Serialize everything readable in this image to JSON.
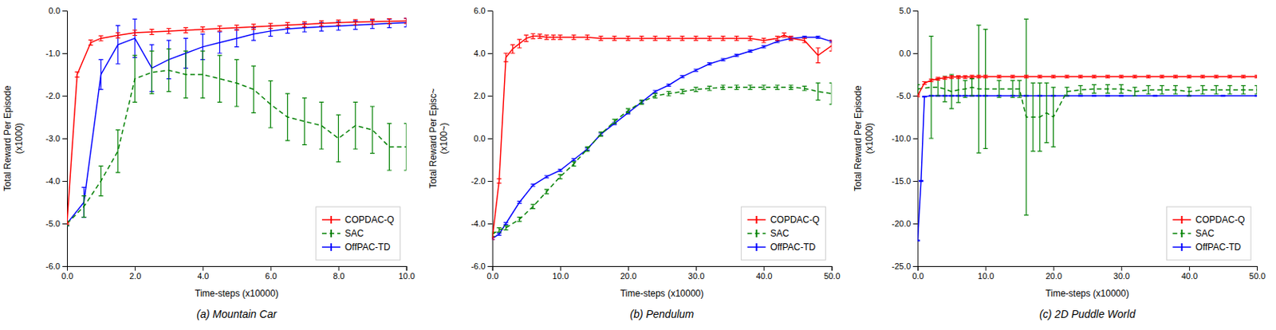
{
  "chart_data": [
    {
      "type": "line",
      "title": "(a)  Mountain Car",
      "xlabel": "Time-steps (x10000)",
      "ylabel": "Total Reward Per Episode\n(x1000)",
      "xlim": [
        0,
        10.0
      ],
      "ylim": [
        -6.0,
        0.0
      ],
      "xticks": [
        {
          "value": 0.0,
          "label": "0.0"
        },
        {
          "value": 2.0,
          "label": "2.0"
        },
        {
          "value": 4.0,
          "label": "4.0"
        },
        {
          "value": 6.0,
          "label": "6.0"
        },
        {
          "value": 8.0,
          "label": "8.0"
        },
        {
          "value": 10.0,
          "label": "10.0"
        }
      ],
      "yticks": [
        {
          "value": 0.0,
          "label": "0.0"
        },
        {
          "value": -1.0,
          "label": "-1.0"
        },
        {
          "value": -2.0,
          "label": "-2.0"
        },
        {
          "value": -3.0,
          "label": "-3.0"
        },
        {
          "value": -4.0,
          "label": "-4.0"
        },
        {
          "value": -5.0,
          "label": "-5.0"
        },
        {
          "value": -6.0,
          "label": "-6.0"
        }
      ],
      "grid": false,
      "legend": "lower right",
      "series": [
        {
          "name": "COPDAC-Q",
          "color": "#ff0000",
          "line_style": "solid",
          "x": [
            0.0,
            0.3,
            0.7,
            1.0,
            1.5,
            2.0,
            2.5,
            3.0,
            3.5,
            4.0,
            4.5,
            5.0,
            5.5,
            6.0,
            6.5,
            7.0,
            7.5,
            8.0,
            8.5,
            9.0,
            9.5,
            10.0
          ],
          "values": [
            -5.0,
            -1.5,
            -0.75,
            -0.65,
            -0.58,
            -0.52,
            -0.5,
            -0.48,
            -0.46,
            -0.44,
            -0.42,
            -0.4,
            -0.38,
            -0.36,
            -0.34,
            -0.32,
            -0.3,
            -0.28,
            -0.27,
            -0.26,
            -0.25,
            -0.24
          ],
          "errors": [
            0.02,
            0.06,
            0.06,
            0.06,
            0.06,
            0.06,
            0.06,
            0.06,
            0.06,
            0.06,
            0.06,
            0.06,
            0.06,
            0.06,
            0.06,
            0.06,
            0.06,
            0.06,
            0.06,
            0.06,
            0.06,
            0.06
          ]
        },
        {
          "name": "SAC",
          "color": "#008000",
          "line_style": "dashed",
          "x": [
            0.0,
            0.5,
            1.0,
            1.5,
            2.0,
            2.5,
            3.0,
            3.5,
            4.0,
            4.5,
            5.0,
            5.5,
            6.0,
            6.5,
            7.0,
            7.5,
            8.0,
            8.5,
            9.0,
            9.5,
            10.0
          ],
          "values": [
            -5.0,
            -4.6,
            -4.0,
            -3.3,
            -1.6,
            -1.45,
            -1.4,
            -1.5,
            -1.5,
            -1.6,
            -1.7,
            -1.85,
            -2.2,
            -2.5,
            -2.6,
            -2.7,
            -3.0,
            -2.7,
            -2.8,
            -3.2,
            -3.2
          ],
          "errors": [
            0.05,
            0.25,
            0.35,
            0.5,
            0.55,
            0.5,
            0.5,
            0.55,
            0.55,
            0.55,
            0.55,
            0.55,
            0.55,
            0.55,
            0.55,
            0.55,
            0.55,
            0.55,
            0.55,
            0.55,
            0.55
          ]
        },
        {
          "name": "OffPAC-TD",
          "color": "#0000ff",
          "line_style": "solid",
          "x": [
            0.0,
            0.5,
            1.0,
            1.5,
            2.0,
            2.5,
            3.0,
            3.5,
            4.0,
            4.5,
            5.0,
            5.5,
            6.0,
            6.5,
            7.0,
            7.5,
            8.0,
            8.5,
            9.0,
            9.5,
            10.0
          ],
          "values": [
            -5.0,
            -4.5,
            -1.5,
            -0.8,
            -0.65,
            -1.35,
            -1.15,
            -1.0,
            -0.85,
            -0.75,
            -0.65,
            -0.55,
            -0.48,
            -0.43,
            -0.4,
            -0.38,
            -0.36,
            -0.34,
            -0.32,
            -0.3,
            -0.28
          ],
          "errors": [
            0.05,
            0.35,
            0.35,
            0.45,
            0.45,
            0.55,
            0.45,
            0.35,
            0.3,
            0.25,
            0.2,
            0.15,
            0.12,
            0.1,
            0.1,
            0.1,
            0.1,
            0.1,
            0.1,
            0.1,
            0.1
          ]
        }
      ]
    },
    {
      "type": "line",
      "title": "(b)  Pendulum",
      "xlabel": "Time-steps (x10000)",
      "ylabel": "Total Reward Per Episc~\n(x100~)",
      "xlim": [
        0,
        50.0
      ],
      "ylim": [
        -6.0,
        6.0
      ],
      "xticks": [
        {
          "value": 0.0,
          "label": "0.0"
        },
        {
          "value": 10.0,
          "label": "10.0"
        },
        {
          "value": 20.0,
          "label": "20.0"
        },
        {
          "value": 30.0,
          "label": "30.0"
        },
        {
          "value": 40.0,
          "label": "40.0"
        },
        {
          "value": 50.0,
          "label": "50.0"
        }
      ],
      "yticks": [
        {
          "value": 6.0,
          "label": "6.0"
        },
        {
          "value": 4.0,
          "label": "4.0"
        },
        {
          "value": 2.0,
          "label": "2.0"
        },
        {
          "value": 0.0,
          "label": "0.0"
        },
        {
          "value": -2.0,
          "label": "-2.0"
        },
        {
          "value": -4.0,
          "label": "-4.0"
        },
        {
          "value": -6.0,
          "label": "-6.0"
        }
      ],
      "grid": false,
      "legend": "lower right",
      "series": [
        {
          "name": "COPDAC-Q",
          "color": "#ff0000",
          "line_style": "solid",
          "x": [
            0.0,
            1.0,
            2.0,
            3.0,
            4.0,
            5.0,
            6.0,
            7.0,
            8.0,
            9.0,
            10.0,
            12.0,
            14.0,
            16.0,
            18.0,
            20.0,
            22.0,
            24.0,
            26.0,
            28.0,
            30.0,
            32.0,
            34.0,
            36.0,
            38.0,
            40.0,
            42.0,
            43.0,
            44.0,
            46.0,
            48.0,
            50.0
          ],
          "values": [
            -4.7,
            -2.0,
            3.8,
            4.2,
            4.45,
            4.7,
            4.8,
            4.8,
            4.75,
            4.75,
            4.75,
            4.75,
            4.75,
            4.7,
            4.7,
            4.7,
            4.7,
            4.7,
            4.7,
            4.7,
            4.7,
            4.7,
            4.7,
            4.7,
            4.7,
            4.6,
            4.7,
            4.85,
            4.7,
            4.6,
            3.9,
            4.35
          ],
          "errors": [
            0.05,
            0.1,
            0.2,
            0.2,
            0.2,
            0.15,
            0.12,
            0.1,
            0.1,
            0.1,
            0.1,
            0.1,
            0.1,
            0.1,
            0.1,
            0.1,
            0.1,
            0.1,
            0.1,
            0.1,
            0.1,
            0.1,
            0.1,
            0.1,
            0.1,
            0.1,
            0.1,
            0.1,
            0.1,
            0.1,
            0.35,
            0.25
          ]
        },
        {
          "name": "SAC",
          "color": "#008000",
          "line_style": "dashed",
          "x": [
            0.0,
            1.0,
            2.0,
            4.0,
            6.0,
            8.0,
            10.0,
            12.0,
            14.0,
            16.0,
            18.0,
            20.0,
            22.0,
            24.0,
            26.0,
            28.0,
            30.0,
            32.0,
            34.0,
            36.0,
            38.0,
            40.0,
            42.0,
            44.0,
            46.0,
            48.0,
            50.0
          ],
          "values": [
            -4.5,
            -4.3,
            -4.2,
            -3.8,
            -3.2,
            -2.5,
            -1.8,
            -1.2,
            -0.5,
            0.2,
            0.8,
            1.3,
            1.7,
            2.0,
            2.1,
            2.2,
            2.3,
            2.35,
            2.4,
            2.4,
            2.4,
            2.4,
            2.4,
            2.4,
            2.35,
            2.2,
            2.1
          ],
          "errors": [
            0.1,
            0.1,
            0.1,
            0.1,
            0.1,
            0.1,
            0.1,
            0.1,
            0.1,
            0.1,
            0.1,
            0.1,
            0.1,
            0.1,
            0.1,
            0.1,
            0.1,
            0.1,
            0.1,
            0.1,
            0.1,
            0.1,
            0.1,
            0.1,
            0.1,
            0.4,
            0.5
          ]
        },
        {
          "name": "OffPAC-TD",
          "color": "#0000ff",
          "line_style": "solid",
          "x": [
            0.0,
            1.0,
            2.0,
            4.0,
            6.0,
            8.0,
            10.0,
            12.0,
            14.0,
            16.0,
            18.0,
            20.0,
            22.0,
            24.0,
            26.0,
            28.0,
            30.0,
            32.0,
            34.0,
            36.0,
            38.0,
            40.0,
            42.0,
            44.0,
            46.0,
            48.0,
            50.0
          ],
          "values": [
            -4.7,
            -4.5,
            -4.0,
            -3.0,
            -2.2,
            -1.8,
            -1.5,
            -1.0,
            -0.5,
            0.2,
            0.7,
            1.2,
            1.7,
            2.2,
            2.5,
            2.9,
            3.2,
            3.5,
            3.7,
            3.9,
            4.1,
            4.3,
            4.55,
            4.7,
            4.75,
            4.75,
            4.55
          ],
          "errors": [
            0.05,
            0.05,
            0.05,
            0.05,
            0.05,
            0.05,
            0.05,
            0.05,
            0.05,
            0.05,
            0.05,
            0.05,
            0.05,
            0.05,
            0.05,
            0.05,
            0.05,
            0.05,
            0.05,
            0.05,
            0.05,
            0.05,
            0.05,
            0.05,
            0.05,
            0.05,
            0.05
          ]
        }
      ]
    },
    {
      "type": "line",
      "title": "(c)  2D Puddle World",
      "xlabel": "Time-steps (x10000)",
      "ylabel": "Total Reward Per Episode\n(x1000)",
      "xlim": [
        0,
        50.0
      ],
      "ylim": [
        -25.0,
        5.0
      ],
      "xticks": [
        {
          "value": 0.0,
          "label": "0.0"
        },
        {
          "value": 10.0,
          "label": "10.0"
        },
        {
          "value": 20.0,
          "label": "20.0"
        },
        {
          "value": 30.0,
          "label": "30.0"
        },
        {
          "value": 40.0,
          "label": "40.0"
        },
        {
          "value": 50.0,
          "label": "50.0"
        }
      ],
      "yticks": [
        {
          "value": 5.0,
          "label": "5.0"
        },
        {
          "value": 0.0,
          "label": "0.0"
        },
        {
          "value": -5.0,
          "label": "-5.0"
        },
        {
          "value": -10.0,
          "label": "-10.0"
        },
        {
          "value": -15.0,
          "label": "-15.0"
        },
        {
          "value": -20.0,
          "label": "-20.0"
        },
        {
          "value": -25.0,
          "label": "-25.0"
        }
      ],
      "grid": false,
      "legend": "lower right",
      "series": [
        {
          "name": "COPDAC-Q",
          "color": "#ff0000",
          "line_style": "solid",
          "x": [
            0.0,
            1.0,
            2.0,
            3.0,
            4.0,
            5.0,
            6.0,
            7.0,
            8.0,
            9.0,
            10.0,
            12.0,
            14.0,
            16.0,
            18.0,
            20.0,
            22.0,
            24.0,
            26.0,
            28.0,
            30.0,
            32.0,
            34.0,
            36.0,
            38.0,
            40.0,
            42.0,
            44.0,
            46.0,
            48.0,
            50.0
          ],
          "values": [
            -5.0,
            -3.5,
            -3.2,
            -3.0,
            -2.9,
            -2.8,
            -2.8,
            -2.8,
            -2.75,
            -2.75,
            -2.75,
            -2.75,
            -2.75,
            -2.75,
            -2.75,
            -2.75,
            -2.75,
            -2.75,
            -2.75,
            -2.75,
            -2.75,
            -2.75,
            -2.75,
            -2.75,
            -2.75,
            -2.75,
            -2.75,
            -2.75,
            -2.75,
            -2.75,
            -2.75
          ],
          "errors": [
            0.1,
            0.15,
            0.15,
            0.15,
            0.15,
            0.15,
            0.15,
            0.15,
            0.15,
            0.15,
            0.15,
            0.15,
            0.15,
            0.15,
            0.15,
            0.15,
            0.15,
            0.15,
            0.15,
            0.15,
            0.15,
            0.15,
            0.15,
            0.15,
            0.15,
            0.15,
            0.15,
            0.15,
            0.15,
            0.15,
            0.15
          ]
        },
        {
          "name": "SAC",
          "color": "#008000",
          "line_style": "dashed",
          "x": [
            0.0,
            2.0,
            3.0,
            4.0,
            5.0,
            6.0,
            7.0,
            8.0,
            9.0,
            10.0,
            12.0,
            14.0,
            15.0,
            16.0,
            17.0,
            18.0,
            19.0,
            20.0,
            22.0,
            24.0,
            26.0,
            28.0,
            30.0,
            32.0,
            34.0,
            36.0,
            38.0,
            40.0,
            42.0,
            44.0,
            46.0,
            48.0,
            50.0
          ],
          "values": [
            -4.2,
            -4.0,
            -4.0,
            -4.2,
            -4.5,
            -4.3,
            -4.2,
            -4.0,
            -4.2,
            -4.2,
            -4.2,
            -4.2,
            -4.2,
            -7.5,
            -7.5,
            -7.5,
            -7.0,
            -7.5,
            -4.5,
            -4.3,
            -4.2,
            -4.2,
            -4.2,
            -4.5,
            -4.3,
            -4.3,
            -4.3,
            -4.5,
            -4.3,
            -4.3,
            -4.3,
            -4.3,
            -4.3
          ],
          "errors": [
            0.5,
            6.0,
            1.0,
            1.5,
            2.0,
            1.5,
            1.0,
            1.0,
            7.5,
            7.0,
            1.0,
            1.0,
            1.0,
            11.5,
            4.0,
            4.0,
            3.5,
            3.5,
            0.5,
            0.5,
            0.5,
            0.5,
            0.5,
            0.5,
            0.5,
            0.5,
            0.5,
            0.5,
            0.5,
            0.5,
            0.5,
            0.5,
            0.5
          ]
        },
        {
          "name": "OffPAC-TD",
          "color": "#0000ff",
          "line_style": "solid",
          "x": [
            0.0,
            0.5,
            1.0,
            2.0,
            3.0,
            4.0,
            5.0,
            6.0,
            7.0,
            8.0,
            9.0,
            10.0,
            12.0,
            14.0,
            16.0,
            18.0,
            20.0,
            22.0,
            24.0,
            26.0,
            28.0,
            30.0,
            35.0,
            40.0,
            45.0,
            50.0
          ],
          "values": [
            -22.0,
            -15.0,
            -5.1,
            -5.0,
            -5.0,
            -5.0,
            -5.0,
            -5.0,
            -5.0,
            -5.0,
            -5.0,
            -5.0,
            -5.0,
            -5.0,
            -5.0,
            -5.0,
            -5.0,
            -5.0,
            -5.0,
            -5.0,
            -5.0,
            -5.0,
            -5.0,
            -5.0,
            -5.0,
            -5.0
          ],
          "errors": [
            0.05,
            0.05,
            0.05,
            0.05,
            0.05,
            0.05,
            0.05,
            0.05,
            0.05,
            0.05,
            0.05,
            0.05,
            0.05,
            0.05,
            0.05,
            0.05,
            0.05,
            0.05,
            0.05,
            0.05,
            0.05,
            0.05,
            0.05,
            0.05,
            0.05,
            0.05
          ]
        }
      ]
    }
  ]
}
